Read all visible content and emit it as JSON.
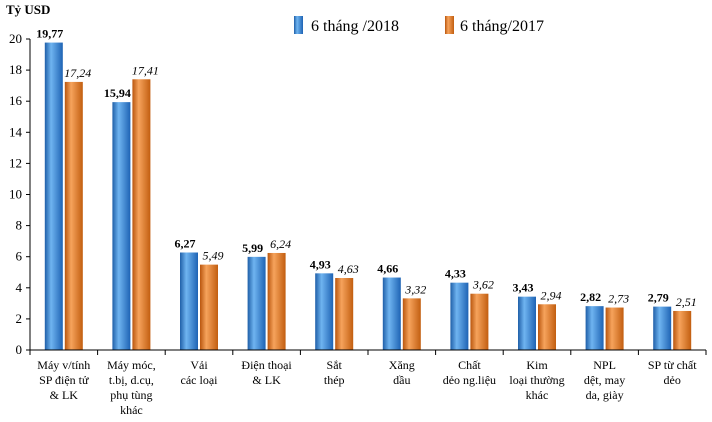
{
  "chart_data": {
    "type": "bar",
    "ylabel": "Tỷ USD",
    "ylim": [
      0,
      20
    ],
    "yticks": [
      0,
      2,
      4,
      6,
      8,
      10,
      12,
      14,
      16,
      18,
      20
    ],
    "grid": false,
    "legend_position": "top",
    "categories": [
      [
        "Máy v/tính",
        "SP điện tử",
        "& LK"
      ],
      [
        "Máy móc,",
        "t.bị, d.cụ,",
        "phụ tùng",
        "khác"
      ],
      [
        "Vải",
        "các loại"
      ],
      [
        "Điện thoại",
        "& LK"
      ],
      [
        "Sắt",
        "thép"
      ],
      [
        "Xăng",
        "dầu"
      ],
      [
        "Chất",
        "dẻo ng.liệu"
      ],
      [
        "Kim",
        "loại thường",
        "khác"
      ],
      [
        "NPL",
        "dệt, may",
        "da, giày"
      ],
      [
        "SP từ chất",
        "dẻo"
      ]
    ],
    "series": [
      {
        "name": "6 tháng /2018",
        "color": "#2E86D6",
        "values": [
          19.77,
          15.94,
          6.27,
          5.99,
          4.93,
          4.66,
          4.33,
          3.43,
          2.82,
          2.79
        ],
        "labels": [
          "19,77",
          "15,94",
          "6,27",
          "5,99",
          "4,93",
          "4,66",
          "4,33",
          "3,43",
          "2,82",
          "2,79"
        ]
      },
      {
        "name": "6 tháng/2017",
        "color": "#E8731A",
        "values": [
          17.24,
          17.41,
          5.49,
          6.24,
          4.63,
          3.32,
          3.62,
          2.94,
          2.73,
          2.51
        ],
        "labels": [
          "17,24",
          "17,41",
          "5,49",
          "6,24",
          "4,63",
          "3,32",
          "3,62",
          "2,94",
          "2,73",
          "2,51"
        ]
      }
    ]
  }
}
